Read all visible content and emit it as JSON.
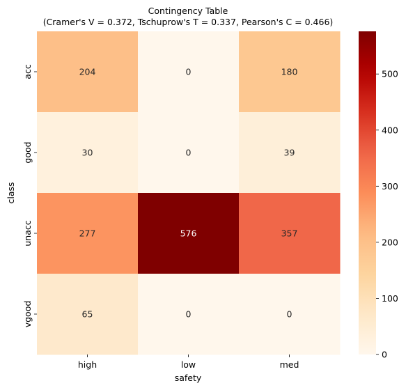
{
  "chart_data": {
    "type": "heatmap",
    "title": "Contingency Table",
    "subtitle": "(Cramer's V = 0.372, Tschuprow's T = 0.337, Pearson's C = 0.466)",
    "xlabel": "safety",
    "ylabel": "class",
    "x_categories": [
      "high",
      "low",
      "med"
    ],
    "y_categories": [
      "acc",
      "good",
      "unacc",
      "vgood"
    ],
    "values": [
      [
        204,
        0,
        180
      ],
      [
        30,
        0,
        39
      ],
      [
        277,
        576,
        357
      ],
      [
        65,
        0,
        0
      ]
    ],
    "colormap": "OrRd",
    "colorbar": {
      "range": [
        0,
        576
      ],
      "ticks": [
        0,
        100,
        200,
        300,
        400,
        500
      ],
      "tick_labels": [
        "0",
        "100",
        "200",
        "300",
        "400",
        "500"
      ]
    }
  }
}
